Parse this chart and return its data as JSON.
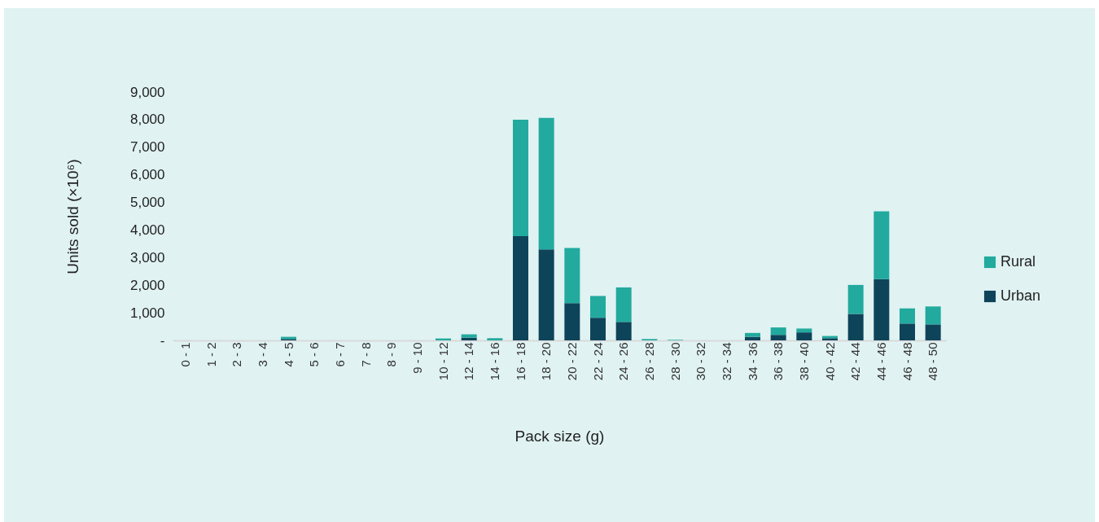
{
  "chart_data": {
    "type": "bar",
    "stacked": true,
    "xlabel": "Pack size (g)",
    "ylabel": "Units sold (×10⁶)",
    "categories": [
      "0 - 1",
      "1 - 2",
      "2 - 3",
      "3 - 4",
      "4 - 5",
      "5 - 6",
      "6 - 7",
      "7 - 8",
      "8 - 9",
      "9 - 10",
      "10 - 12",
      "12 - 14",
      "14 - 16",
      "16 - 18",
      "18 - 20",
      "20 - 22",
      "22 - 24",
      "24 - 26",
      "26 - 28",
      "28 - 30",
      "30 - 32",
      "32 - 34",
      "34 - 36",
      "36 - 38",
      "38 - 40",
      "40 - 42",
      "42 - 44",
      "44 - 46",
      "46 - 48",
      "48 - 50"
    ],
    "series": [
      {
        "name": "Urban",
        "color": "#0e445a",
        "values": [
          0,
          0,
          0,
          0,
          50,
          0,
          0,
          0,
          0,
          0,
          0,
          100,
          0,
          3780,
          3300,
          1350,
          820,
          670,
          0,
          0,
          0,
          0,
          130,
          200,
          290,
          80,
          960,
          2220,
          610,
          580
        ]
      },
      {
        "name": "Rural",
        "color": "#22aa9e",
        "values": [
          0,
          0,
          0,
          0,
          80,
          0,
          0,
          0,
          0,
          0,
          70,
          120,
          80,
          4220,
          4760,
          2000,
          790,
          1250,
          50,
          20,
          0,
          0,
          140,
          270,
          140,
          80,
          1050,
          2460,
          550,
          650
        ]
      }
    ],
    "ylim": [
      0,
      9000
    ],
    "yticks": [
      {
        "value": 0,
        "label": "-"
      },
      {
        "value": 1000,
        "label": "1,000"
      },
      {
        "value": 2000,
        "label": "2,000"
      },
      {
        "value": 3000,
        "label": "3,000"
      },
      {
        "value": 4000,
        "label": "4,000"
      },
      {
        "value": 5000,
        "label": "5,000"
      },
      {
        "value": 6000,
        "label": "6,000"
      },
      {
        "value": 7000,
        "label": "7,000"
      },
      {
        "value": 8000,
        "label": "8,000"
      },
      {
        "value": 9000,
        "label": "9,000"
      }
    ],
    "legend": "right",
    "grid": false
  }
}
